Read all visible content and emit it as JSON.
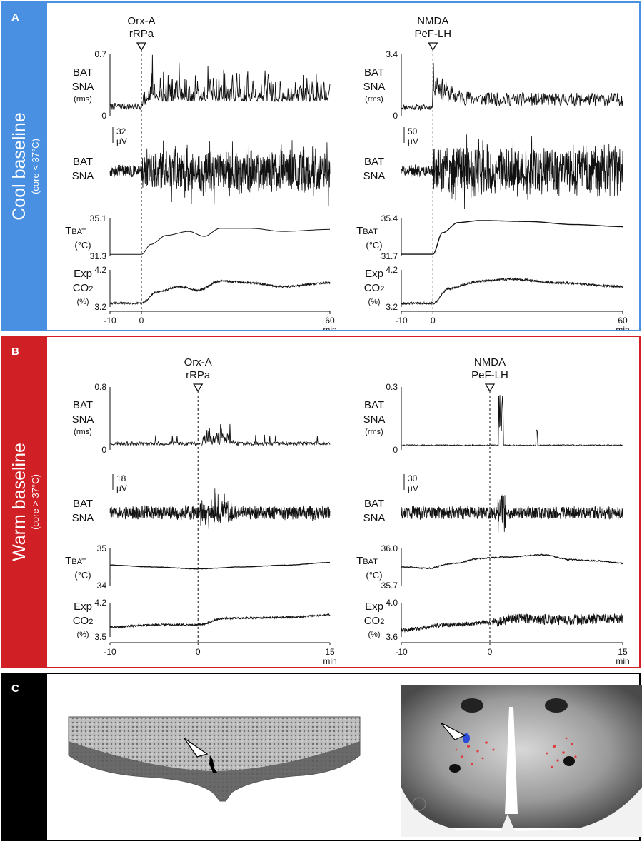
{
  "colors": {
    "panel_a": "#4a90e2",
    "panel_b": "#d01f25",
    "panel_c": "#000000",
    "trace": "#111111"
  },
  "panel_a": {
    "letter": "A",
    "title": "Cool baseline",
    "subtitle": "(core < 37°C)",
    "columns": [
      {
        "stimulus_line1": "Orx-A",
        "stimulus_line2": "rRPa",
        "time_ticks": [
          "-10",
          "0",
          "60"
        ],
        "time_unit": "min",
        "rms": {
          "label1": "BAT",
          "label2": "SNA",
          "label3": "(rms)",
          "ymax": "0.7",
          "ymin": "0"
        },
        "raw": {
          "label1": "BAT",
          "label2": "SNA",
          "scale_value": "32",
          "scale_unit": "µV"
        },
        "tbat": {
          "label_main": "T",
          "label_sub": "BAT",
          "unit": "(°C)",
          "ymax": "35.1",
          "ymin": "31.3"
        },
        "co2": {
          "label1": "Exp",
          "label_main": "CO",
          "label_sub": "2",
          "unit": "(%)",
          "ymax": "4.2",
          "ymin": "3.2"
        }
      },
      {
        "stimulus_line1": "NMDA",
        "stimulus_line2": "PeF-LH",
        "time_ticks": [
          "-10",
          "0",
          "60"
        ],
        "time_unit": "min",
        "rms": {
          "label1": "BAT",
          "label2": "SNA",
          "label3": "(rms)",
          "ymax": "3.4",
          "ymin": "0"
        },
        "raw": {
          "label1": "BAT",
          "label2": "SNA",
          "scale_value": "50",
          "scale_unit": "µV"
        },
        "tbat": {
          "label_main": "T",
          "label_sub": "BAT",
          "unit": "(°C)",
          "ymax": "35.4",
          "ymin": "31.7"
        },
        "co2": {
          "label1": "Exp",
          "label_main": "CO",
          "label_sub": "2",
          "unit": "(%)",
          "ymax": "4.2",
          "ymin": "3.2"
        }
      }
    ]
  },
  "panel_b": {
    "letter": "B",
    "title": "Warm baseline",
    "subtitle": "(core > 37°C)",
    "columns": [
      {
        "stimulus_line1": "Orx-A",
        "stimulus_line2": "rRPa",
        "time_ticks": [
          "-10",
          "0",
          "15"
        ],
        "time_unit": "min",
        "rms": {
          "label1": "BAT",
          "label2": "SNA",
          "label3": "(rms)",
          "ymax": "0.8",
          "ymin": "0"
        },
        "raw": {
          "label1": "BAT",
          "label2": "SNA",
          "scale_value": "18",
          "scale_unit": "µV"
        },
        "tbat": {
          "label_main": "T",
          "label_sub": "BAT",
          "unit": "(°C)",
          "ymax": "35",
          "ymin": "34"
        },
        "co2": {
          "label1": "Exp",
          "label_main": "CO",
          "label_sub": "2",
          "unit": "(%)",
          "ymax": "4.2",
          "ymin": "3.5"
        }
      },
      {
        "stimulus_line1": "NMDA",
        "stimulus_line2": "PeF-LH",
        "time_ticks": [
          "-10",
          "0",
          "15"
        ],
        "time_unit": "min",
        "rms": {
          "label1": "BAT",
          "label2": "SNA",
          "label3": "(rms)",
          "ymax": "0.3",
          "ymin": "0"
        },
        "raw": {
          "label1": "BAT",
          "label2": "SNA",
          "scale_value": "30",
          "scale_unit": "µV"
        },
        "tbat": {
          "label_main": "T",
          "label_sub": "BAT",
          "unit": "(°C)",
          "ymax": "36.0",
          "ymin": "35.7"
        },
        "co2": {
          "label1": "Exp",
          "label_main": "CO",
          "label_sub": "2",
          "unit": "(%)",
          "ymax": "4.0",
          "ymin": "3.6"
        }
      }
    ]
  },
  "panel_c": {
    "letter": "C"
  },
  "chart_data": [
    {
      "type": "line",
      "panel": "A-left",
      "x_range_min": [
        -10,
        60
      ],
      "traces": {
        "tbat_degC": {
          "x": [
            -10,
            0,
            3,
            8,
            15,
            20,
            25,
            35,
            45,
            60
          ],
          "y": [
            31.5,
            31.5,
            32.5,
            33.4,
            33.8,
            33.3,
            34.1,
            34.1,
            33.8,
            34.0
          ]
        },
        "exp_co2_pct": {
          "x": [
            -10,
            0,
            5,
            12,
            18,
            25,
            35,
            45,
            60
          ],
          "y": [
            3.3,
            3.3,
            3.6,
            3.75,
            3.65,
            3.9,
            3.85,
            3.75,
            3.85
          ]
        },
        "rms_mV_approx": {
          "baseline_pre": 0.05,
          "baseline_post": 0.25,
          "peak": 0.7
        }
      }
    },
    {
      "type": "line",
      "panel": "A-right",
      "x_range_min": [
        -10,
        60
      ],
      "traces": {
        "tbat_degC": {
          "x": [
            -10,
            0,
            3,
            8,
            15,
            30,
            45,
            60
          ],
          "y": [
            31.9,
            31.9,
            34.0,
            35.0,
            35.2,
            35.1,
            34.8,
            34.6
          ]
        },
        "exp_co2_pct": {
          "x": [
            -10,
            0,
            5,
            15,
            25,
            40,
            60
          ],
          "y": [
            3.3,
            3.3,
            3.7,
            3.9,
            3.95,
            3.85,
            3.75
          ]
        },
        "rms_approx": {
          "baseline_pre": 0.3,
          "peak_at_1min": 3.4,
          "baseline_post": 1.0
        }
      }
    },
    {
      "type": "line",
      "panel": "B-left",
      "x_range_min": [
        -10,
        15
      ],
      "traces": {
        "tbat_degC": {
          "x": [
            -10,
            -5,
            0,
            5,
            10,
            15
          ],
          "y": [
            34.55,
            34.5,
            34.45,
            34.5,
            34.55,
            34.62
          ]
        },
        "exp_co2_pct": {
          "x": [
            -10,
            -5,
            0,
            3,
            10,
            15
          ],
          "y": [
            3.7,
            3.75,
            3.75,
            3.88,
            3.9,
            3.95
          ]
        },
        "rms_approx": {
          "baseline": 0.03,
          "peak": 0.4
        }
      }
    },
    {
      "type": "line",
      "panel": "B-right",
      "x_range_min": [
        -10,
        15
      ],
      "traces": {
        "tbat_degC": {
          "x": [
            -10,
            -7,
            -4,
            -1,
            2,
            6,
            9,
            12,
            15
          ],
          "y": [
            35.85,
            35.84,
            35.88,
            35.92,
            35.93,
            35.95,
            35.91,
            35.9,
            35.88
          ]
        },
        "exp_co2_pct": {
          "x": [
            -10,
            -5,
            0,
            3,
            8,
            15
          ],
          "y": [
            3.68,
            3.74,
            3.77,
            3.82,
            3.8,
            3.82
          ]
        },
        "rms_approx": {
          "baseline": 0.01,
          "peak_at_1min": 0.26
        }
      }
    }
  ]
}
